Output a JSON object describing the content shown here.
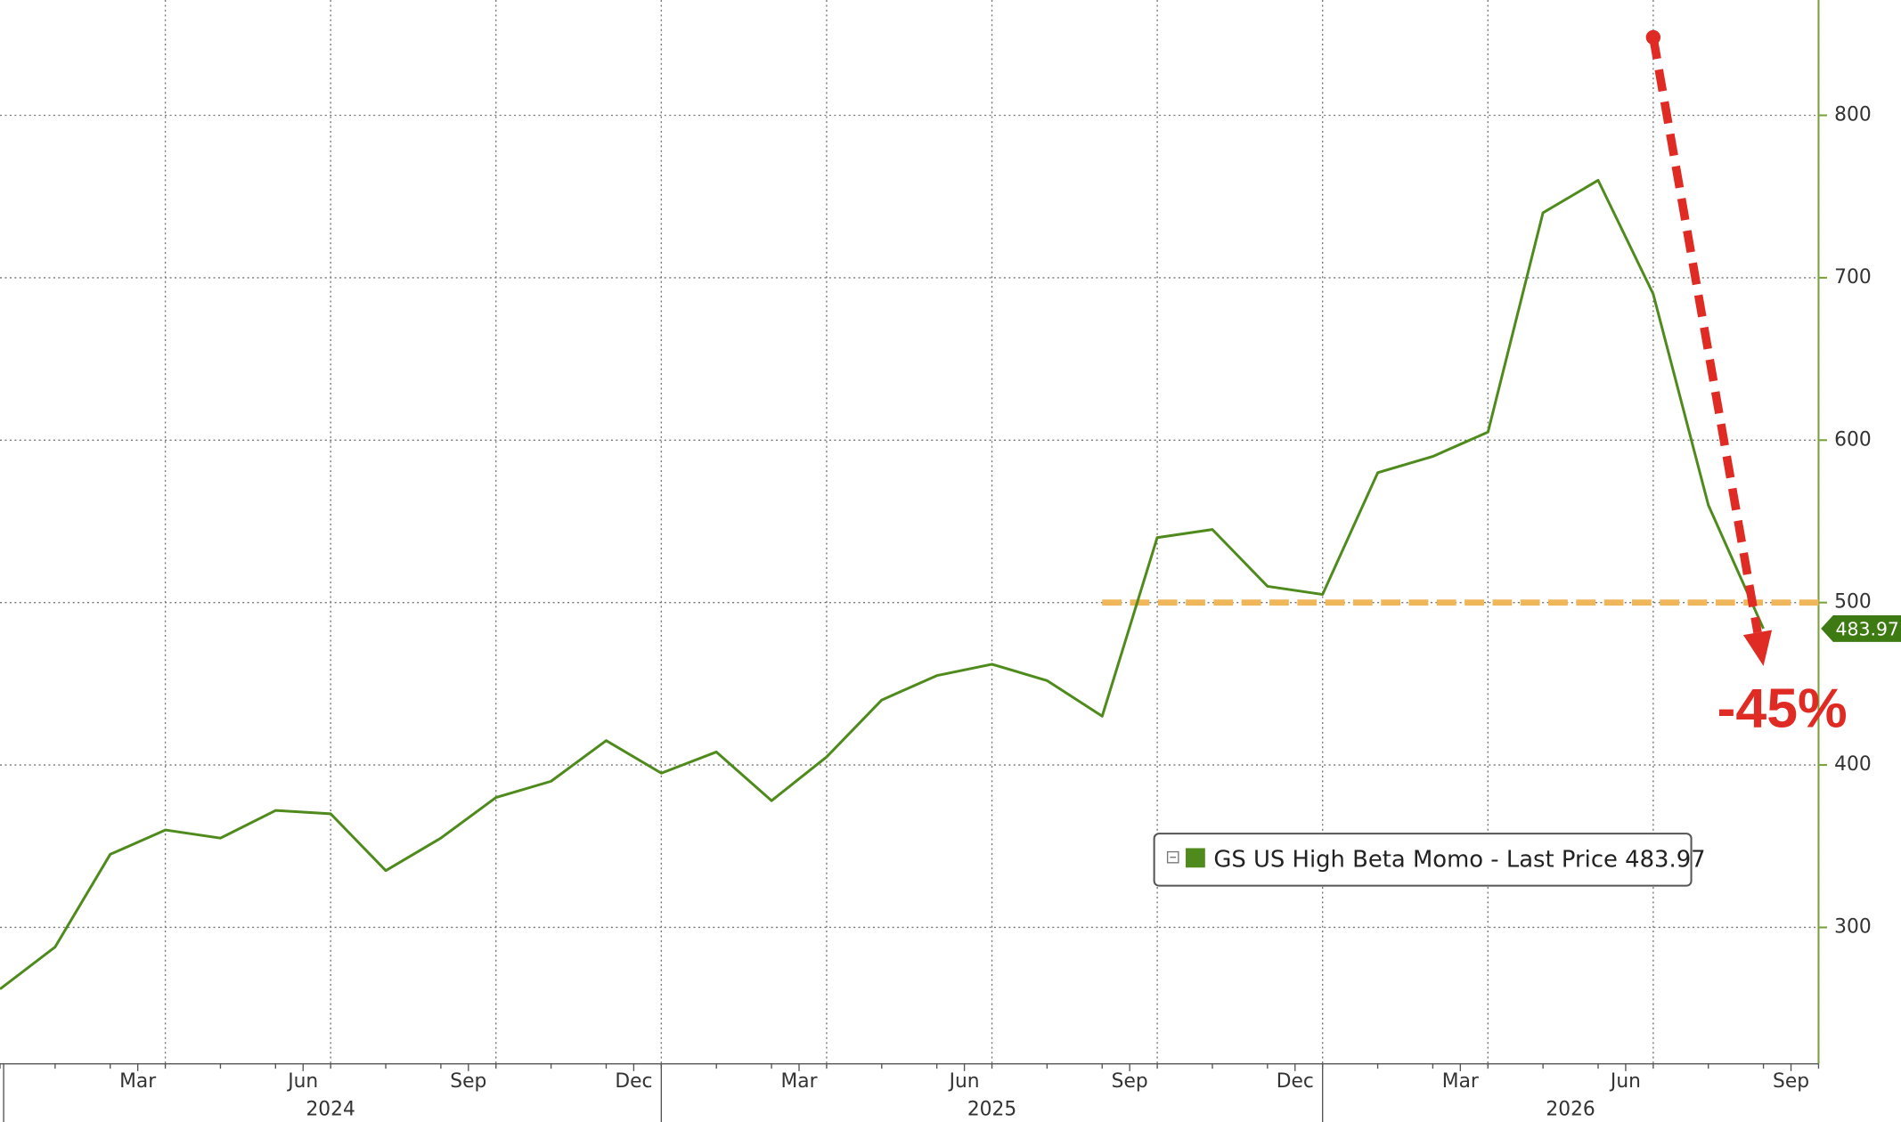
{
  "chart_data": {
    "type": "line",
    "x": [
      "2024-01",
      "2024-02",
      "2024-03",
      "2024-04",
      "2024-05",
      "2024-06",
      "2024-07",
      "2024-08",
      "2024-09",
      "2024-10",
      "2024-11",
      "2024-12",
      "2025-01",
      "2025-02",
      "2025-03",
      "2025-04",
      "2025-05",
      "2025-06",
      "2025-07",
      "2025-08",
      "2025-09",
      "2025-10",
      "2025-11",
      "2025-12",
      "2026-01",
      "2026-02",
      "2026-03",
      "2026-04",
      "2026-05",
      "2026-06",
      "2026-07",
      "2026-08",
      "2026-09"
    ],
    "series": [
      {
        "name": "GS US High Beta Momo - Last Price 483.97",
        "color": "#4f8a1c",
        "values": [
          262,
          288,
          345,
          360,
          355,
          372,
          370,
          335,
          355,
          380,
          390,
          415,
          395,
          408,
          378,
          405,
          440,
          455,
          462,
          452,
          430,
          540,
          545,
          510,
          505,
          580,
          590,
          605,
          740,
          760,
          690,
          560,
          483.97
        ]
      }
    ],
    "xlim": [
      "2024-01",
      "2026-10"
    ],
    "ylim": [
      216,
      871
    ],
    "yticks": [
      300,
      400,
      500,
      600,
      700,
      800
    ],
    "xticks": [
      {
        "value": "2024-03",
        "label": "Mar"
      },
      {
        "value": "2024-06",
        "label": "Jun"
      },
      {
        "value": "2024-09",
        "label": "Sep"
      },
      {
        "value": "2024-12",
        "label": "Dec"
      },
      {
        "value": "2025-03",
        "label": "Mar"
      },
      {
        "value": "2025-06",
        "label": "Jun"
      },
      {
        "value": "2025-09",
        "label": "Sep"
      },
      {
        "value": "2025-12",
        "label": "Dec"
      },
      {
        "value": "2026-03",
        "label": "Mar"
      },
      {
        "value": "2026-06",
        "label": "Jun"
      },
      {
        "value": "2026-09",
        "label": "Sep"
      }
    ],
    "xgrid": [
      "2024-04",
      "2024-07",
      "2024-10",
      "2025-01",
      "2025-04",
      "2025-07",
      "2025-10",
      "2026-01",
      "2026-04",
      "2026-07",
      "2026-10"
    ],
    "years": [
      "2024",
      "2025",
      "2026"
    ],
    "grid": true,
    "reference_line": {
      "value": 500,
      "from": "2025-09",
      "color": "#f0b65a"
    },
    "arrow": {
      "from": [
        "2026-07",
        848
      ],
      "to": [
        "2026-09",
        461
      ],
      "color": "#e02a24"
    },
    "annotation": "-45%",
    "last_price_label": "483.97"
  }
}
